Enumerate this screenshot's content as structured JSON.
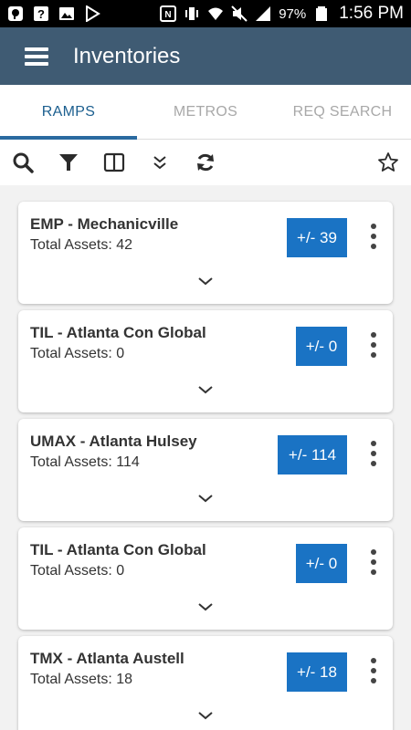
{
  "status_bar": {
    "icons": [
      "pinterest-icon",
      "question-icon",
      "image-icon",
      "play-store-icon",
      "nfc-icon",
      "vibrate-icon",
      "wifi-icon",
      "mute-icon",
      "signal-icon",
      "battery-icon"
    ],
    "battery": "97%",
    "time": "1:56 PM"
  },
  "app_bar": {
    "title": "Inventories",
    "menu_icon": "hamburger-menu-icon"
  },
  "tabs": [
    {
      "label": "RAMPS",
      "active": true
    },
    {
      "label": "METROS",
      "active": false
    },
    {
      "label": "REQ SEARCH",
      "active": false
    }
  ],
  "toolbar": {
    "icons": [
      "search-icon",
      "filter-icon",
      "columns-icon",
      "double-chevron-down-icon",
      "refresh-icon",
      "star-icon"
    ]
  },
  "cards": [
    {
      "title": "EMP - Mechanicville",
      "subtitle": "Total Assets: 42",
      "button": "+/- 39"
    },
    {
      "title": "TIL - Atlanta Con Global",
      "subtitle": "Total Assets: 0",
      "button": "+/- 0"
    },
    {
      "title": "UMAX - Atlanta Hulsey",
      "subtitle": "Total Assets: 114",
      "button": "+/- 114"
    },
    {
      "title": "TIL - Atlanta Con Global",
      "subtitle": "Total Assets: 0",
      "button": "+/- 0"
    },
    {
      "title": "TMX - Atlanta Austell",
      "subtitle": "Total Assets: 18",
      "button": "+/- 18"
    }
  ],
  "colors": {
    "app_bar": "#3f5b73",
    "accent": "#1a73c4",
    "tab_active": "#1c5f8f"
  }
}
